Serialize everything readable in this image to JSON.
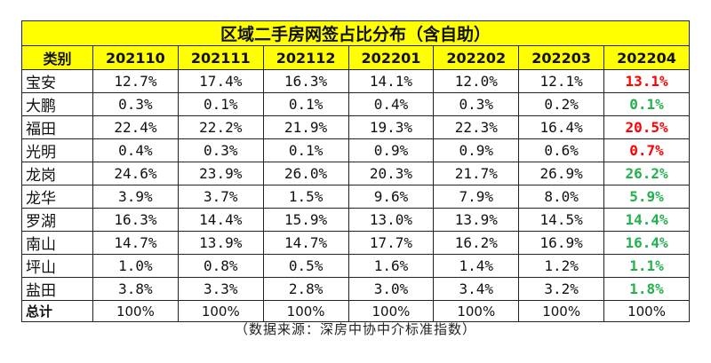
{
  "title": "区域二手房网签占比分布（含自助）",
  "header_label": "类别",
  "columns": [
    "202110",
    "202111",
    "202112",
    "202201",
    "202202",
    "202203",
    "202204"
  ],
  "colors": {
    "header_bg": "#ffff00",
    "up": "#ff0000",
    "down": "#22b14c"
  },
  "rows": [
    {
      "region": "宝安",
      "values": [
        "12.7%",
        "17.4%",
        "16.3%",
        "14.1%",
        "12.0%",
        "12.1%"
      ],
      "latest": "13.1%",
      "trend": "up"
    },
    {
      "region": "大鹏",
      "values": [
        "0.3%",
        "0.1%",
        "0.1%",
        "0.4%",
        "0.3%",
        "0.2%"
      ],
      "latest": "0.1%",
      "trend": "down"
    },
    {
      "region": "福田",
      "values": [
        "22.4%",
        "22.2%",
        "21.9%",
        "19.3%",
        "22.3%",
        "16.4%"
      ],
      "latest": "20.5%",
      "trend": "up"
    },
    {
      "region": "光明",
      "values": [
        "0.4%",
        "0.3%",
        "0.1%",
        "0.9%",
        "0.9%",
        "0.6%"
      ],
      "latest": "0.7%",
      "trend": "up"
    },
    {
      "region": "龙岗",
      "values": [
        "24.6%",
        "23.9%",
        "26.0%",
        "20.3%",
        "21.7%",
        "26.9%"
      ],
      "latest": "26.2%",
      "trend": "down"
    },
    {
      "region": "龙华",
      "values": [
        "3.9%",
        "3.7%",
        "1.5%",
        "9.6%",
        "7.9%",
        "8.0%"
      ],
      "latest": "5.9%",
      "trend": "down"
    },
    {
      "region": "罗湖",
      "values": [
        "16.3%",
        "14.4%",
        "15.9%",
        "13.0%",
        "13.9%",
        "14.5%"
      ],
      "latest": "14.4%",
      "trend": "down"
    },
    {
      "region": "南山",
      "values": [
        "14.7%",
        "13.9%",
        "14.7%",
        "17.7%",
        "16.2%",
        "16.9%"
      ],
      "latest": "16.4%",
      "trend": "down"
    },
    {
      "region": "坪山",
      "values": [
        "1.0%",
        "0.8%",
        "0.5%",
        "1.6%",
        "1.4%",
        "1.2%"
      ],
      "latest": "1.1%",
      "trend": "down"
    },
    {
      "region": "盐田",
      "values": [
        "3.8%",
        "3.3%",
        "2.8%",
        "3.0%",
        "3.4%",
        "3.2%"
      ],
      "latest": "1.8%",
      "trend": "down"
    }
  ],
  "total": {
    "label": "总计",
    "values": [
      "100%",
      "100%",
      "100%",
      "100%",
      "100%",
      "100%",
      "100%"
    ]
  },
  "source": "（数据来源：深房中协中介标准指数）"
}
